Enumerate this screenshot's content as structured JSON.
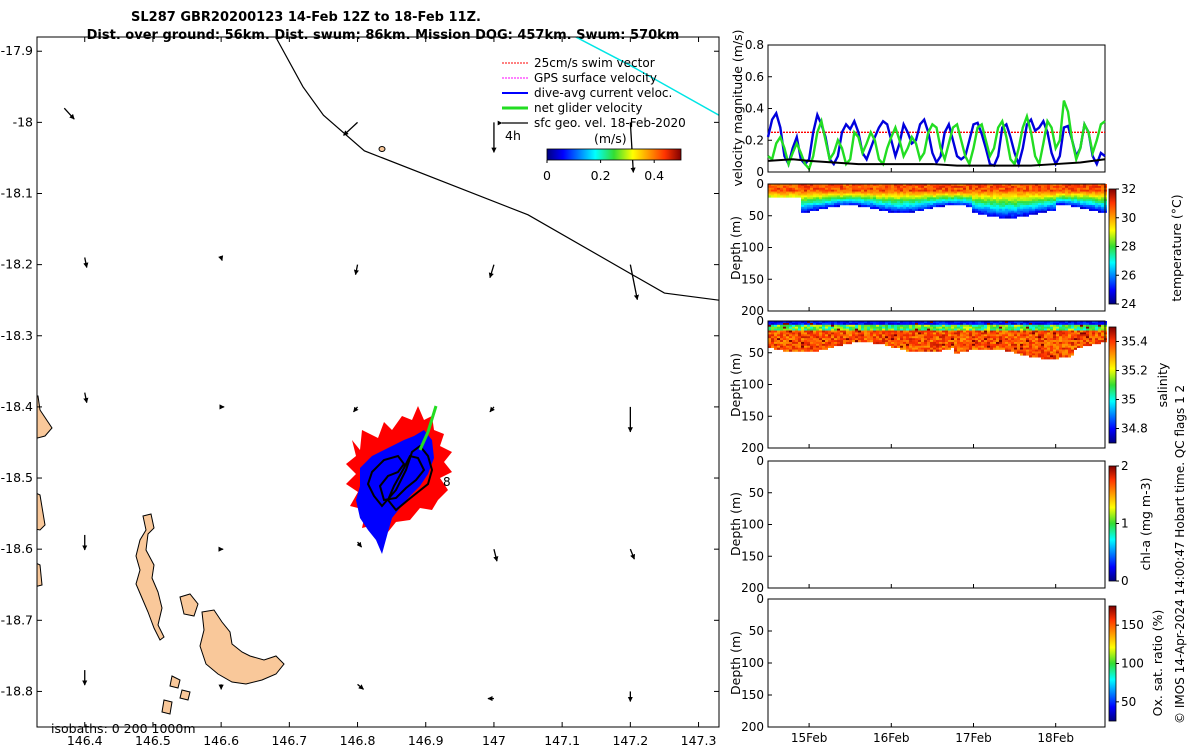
{
  "chart_data": [
    {
      "type": "scatter",
      "id": "map",
      "title_line1": "SL287 GBR20200123 14-Feb 12Z to 18-Feb 11Z.",
      "title_line2": "Dist. over ground: 56km. Dist. swum: 86km. Mission DOG: 457km. Swum: 570km",
      "xlim": [
        146.33,
        147.33
      ],
      "ylim": [
        -18.85,
        -17.88
      ],
      "x_ticks": [
        "146.4",
        "146.5",
        "146.6",
        "146.7",
        "146.8",
        "146.9",
        "147",
        "147.1",
        "147.2",
        "147.3"
      ],
      "x_tick_values": [
        146.4,
        146.5,
        146.6,
        146.7,
        146.8,
        146.9,
        147.0,
        147.1,
        147.2,
        147.3
      ],
      "y_ticks": [
        "-17.9",
        "-18",
        "-18.1",
        "-18.2",
        "-18.3",
        "-18.4",
        "-18.5",
        "-18.6",
        "-18.7",
        "-18.8"
      ],
      "y_tick_values": [
        -17.9,
        -18.0,
        -18.1,
        -18.2,
        -18.3,
        -18.4,
        -18.5,
        -18.6,
        -18.7,
        -18.8
      ],
      "legend": [
        {
          "label": "25cm/s swim vector",
          "color": "#ff0000"
        },
        {
          "label": "GPS surface velocity",
          "color": "#ff00ff"
        },
        {
          "label": "dive-avg current veloc.",
          "color": "#0000ff"
        },
        {
          "label": "net glider velocity",
          "color": "#00dd00"
        },
        {
          "label": "sfc geo. vel. 18-Feb-2020",
          "color": "#000000"
        }
      ],
      "annotation_4h": "4h",
      "annotation_8": "8",
      "isobath_label": "isobaths: 0   200  1000m",
      "colorbar_title": "(m/s)",
      "colorbar_ticks": [
        "0",
        "0.2",
        "0.4"
      ],
      "colorbar_tick_values": [
        0,
        0.2,
        0.4
      ],
      "colorbar_range": [
        0,
        0.5
      ],
      "geo_vectors": [
        {
          "lon": 146.37,
          "lat": -17.98,
          "u": 0.1,
          "v": -0.11
        },
        {
          "lon": 146.8,
          "lat": -18.0,
          "u": -0.14,
          "v": -0.13
        },
        {
          "lon": 147.0,
          "lat": -18.0,
          "u": 0.0,
          "v": -0.3
        },
        {
          "lon": 147.2,
          "lat": -18.0,
          "u": 0.03,
          "v": -0.5
        },
        {
          "lon": 146.4,
          "lat": -18.19,
          "u": 0.02,
          "v": -0.1
        },
        {
          "lon": 146.6,
          "lat": -18.19,
          "u": 0.01,
          "v": -0.03
        },
        {
          "lon": 146.8,
          "lat": -18.2,
          "u": -0.02,
          "v": -0.1
        },
        {
          "lon": 147.0,
          "lat": -18.2,
          "u": -0.04,
          "v": -0.13
        },
        {
          "lon": 147.2,
          "lat": -18.2,
          "u": 0.07,
          "v": -0.35
        },
        {
          "lon": 146.4,
          "lat": -18.38,
          "u": 0.02,
          "v": -0.1
        },
        {
          "lon": 146.6,
          "lat": -18.4,
          "u": 0.03,
          "v": 0.0
        },
        {
          "lon": 146.8,
          "lat": -18.4,
          "u": -0.04,
          "v": -0.05
        },
        {
          "lon": 147.0,
          "lat": -18.4,
          "u": -0.04,
          "v": -0.05
        },
        {
          "lon": 147.2,
          "lat": -18.4,
          "u": 0.0,
          "v": -0.25
        },
        {
          "lon": 146.4,
          "lat": -18.58,
          "u": 0.0,
          "v": -0.15
        },
        {
          "lon": 146.6,
          "lat": -18.6,
          "u": 0.02,
          "v": 0.0
        },
        {
          "lon": 146.8,
          "lat": -18.59,
          "u": 0.04,
          "v": -0.05
        },
        {
          "lon": 147.0,
          "lat": -18.6,
          "u": 0.03,
          "v": -0.12
        },
        {
          "lon": 147.2,
          "lat": -18.6,
          "u": 0.04,
          "v": -0.1
        },
        {
          "lon": 146.4,
          "lat": -18.77,
          "u": 0.0,
          "v": -0.15
        },
        {
          "lon": 146.6,
          "lat": -18.79,
          "u": 0.0,
          "v": -0.05
        },
        {
          "lon": 146.8,
          "lat": -18.79,
          "u": 0.06,
          "v": -0.05
        },
        {
          "lon": 147.0,
          "lat": -18.81,
          "u": -0.06,
          "v": 0.0
        },
        {
          "lon": 147.2,
          "lat": -18.8,
          "u": 0.0,
          "v": -0.1
        }
      ],
      "isobath_line": [
        [
          146.68,
          -17.88
        ],
        [
          146.72,
          -17.95
        ],
        [
          146.75,
          -17.99
        ],
        [
          146.81,
          -18.04
        ],
        [
          147.05,
          -18.13
        ],
        [
          147.25,
          -18.24
        ],
        [
          147.33,
          -18.25
        ]
      ],
      "isobath_cyan": [
        [
          147.12,
          -17.88
        ],
        [
          147.2,
          -17.92
        ],
        [
          147.33,
          -17.99
        ]
      ]
    },
    {
      "type": "line",
      "id": "velocity",
      "ylabel": "velocity magnitude (m/s)",
      "ylim": [
        0,
        0.8
      ],
      "y_ticks": [
        "0",
        "0.2",
        "0.4",
        "0.6",
        "0.8"
      ],
      "y_tick_values": [
        0,
        0.2,
        0.4,
        0.6,
        0.8
      ],
      "xlim": [
        14.5,
        18.6
      ],
      "red_value": 0.25,
      "series": [
        {
          "name": "dive-avg current",
          "color": "#0000dd",
          "x": [
            14.5,
            14.55,
            14.6,
            14.65,
            14.7,
            14.75,
            14.8,
            14.85,
            14.9,
            14.95,
            15.0,
            15.05,
            15.1,
            15.15,
            15.2,
            15.25,
            15.3,
            15.35,
            15.4,
            15.45,
            15.5,
            15.55,
            15.6,
            15.65,
            15.7,
            15.75,
            15.8,
            15.85,
            15.9,
            15.95,
            16.0,
            16.05,
            16.1,
            16.15,
            16.2,
            16.25,
            16.3,
            16.35,
            16.4,
            16.45,
            16.5,
            16.55,
            16.6,
            16.65,
            16.7,
            16.75,
            16.8,
            16.85,
            16.9,
            16.95,
            17.0,
            17.05,
            17.1,
            17.15,
            17.2,
            17.25,
            17.3,
            17.35,
            17.4,
            17.45,
            17.5,
            17.55,
            17.6,
            17.65,
            17.7,
            17.75,
            17.8,
            17.85,
            17.9,
            17.95,
            18.0,
            18.05,
            18.1,
            18.15,
            18.2,
            18.25,
            18.3,
            18.35,
            18.4,
            18.45,
            18.5,
            18.55,
            18.6
          ],
          "values": [
            0.22,
            0.33,
            0.37,
            0.28,
            0.1,
            0.05,
            0.15,
            0.22,
            0.08,
            0.05,
            0.08,
            0.25,
            0.36,
            0.3,
            0.22,
            0.08,
            0.05,
            0.1,
            0.25,
            0.3,
            0.27,
            0.32,
            0.25,
            0.12,
            0.08,
            0.15,
            0.22,
            0.28,
            0.32,
            0.3,
            0.2,
            0.1,
            0.18,
            0.3,
            0.25,
            0.18,
            0.2,
            0.3,
            0.33,
            0.25,
            0.12,
            0.06,
            0.1,
            0.25,
            0.3,
            0.2,
            0.1,
            0.08,
            0.1,
            0.2,
            0.3,
            0.31,
            0.24,
            0.15,
            0.05,
            0.04,
            0.1,
            0.28,
            0.3,
            0.22,
            0.12,
            0.05,
            0.15,
            0.3,
            0.33,
            0.26,
            0.28,
            0.32,
            0.25,
            0.12,
            0.05,
            0.1,
            0.28,
            0.29,
            0.2,
            0.1,
            0.15,
            0.3,
            0.25,
            0.1,
            0.05,
            0.12,
            0.1
          ]
        },
        {
          "name": "net glider",
          "color": "#22dd22",
          "x": [
            14.5,
            14.55,
            14.6,
            14.65,
            14.7,
            14.75,
            14.8,
            14.85,
            14.9,
            14.95,
            15.0,
            15.05,
            15.1,
            15.15,
            15.2,
            15.25,
            15.3,
            15.35,
            15.4,
            15.45,
            15.5,
            15.55,
            15.6,
            15.65,
            15.7,
            15.75,
            15.8,
            15.85,
            15.9,
            15.95,
            16.0,
            16.05,
            16.1,
            16.15,
            16.2,
            16.25,
            16.3,
            16.35,
            16.4,
            16.45,
            16.5,
            16.55,
            16.6,
            16.65,
            16.7,
            16.75,
            16.8,
            16.85,
            16.9,
            16.95,
            17.0,
            17.05,
            17.1,
            17.15,
            17.2,
            17.25,
            17.3,
            17.35,
            17.4,
            17.45,
            17.5,
            17.55,
            17.6,
            17.65,
            17.7,
            17.75,
            17.8,
            17.85,
            17.9,
            17.95,
            18.0,
            18.05,
            18.1,
            18.15,
            18.2,
            18.25,
            18.3,
            18.35,
            18.4,
            18.45,
            18.5,
            18.55,
            18.6
          ],
          "values": [
            0.1,
            0.08,
            0.18,
            0.22,
            0.15,
            0.05,
            0.12,
            0.18,
            0.12,
            0.05,
            0.02,
            0.1,
            0.25,
            0.32,
            0.2,
            0.08,
            0.12,
            0.2,
            0.15,
            0.05,
            0.08,
            0.25,
            0.22,
            0.12,
            0.18,
            0.25,
            0.2,
            0.08,
            0.05,
            0.15,
            0.22,
            0.28,
            0.2,
            0.1,
            0.15,
            0.22,
            0.18,
            0.08,
            0.12,
            0.25,
            0.3,
            0.28,
            0.15,
            0.08,
            0.18,
            0.28,
            0.3,
            0.2,
            0.1,
            0.05,
            0.15,
            0.28,
            0.3,
            0.2,
            0.1,
            0.15,
            0.28,
            0.32,
            0.22,
            0.08,
            0.05,
            0.15,
            0.28,
            0.35,
            0.25,
            0.1,
            0.05,
            0.18,
            0.32,
            0.28,
            0.15,
            0.2,
            0.45,
            0.38,
            0.2,
            0.08,
            0.15,
            0.3,
            0.25,
            0.12,
            0.2,
            0.3,
            0.32
          ]
        },
        {
          "name": "surface",
          "color": "#000000",
          "x": [
            14.5,
            14.8,
            15.0,
            15.3,
            15.6,
            15.9,
            16.2,
            16.5,
            16.8,
            17.1,
            17.4,
            17.7,
            18.0,
            18.3,
            18.6
          ],
          "values": [
            0.07,
            0.08,
            0.07,
            0.06,
            0.05,
            0.05,
            0.05,
            0.05,
            0.04,
            0.04,
            0.04,
            0.04,
            0.05,
            0.06,
            0.08
          ]
        }
      ]
    },
    {
      "type": "heatmap",
      "id": "temperature",
      "ylabel": "Depth (m)",
      "cbar_label": "temperature (°C)",
      "ylim": [
        200,
        0
      ],
      "y_ticks": [
        "0",
        "50",
        "100",
        "150",
        "200"
      ],
      "y_tick_values": [
        0,
        50,
        100,
        150,
        200
      ],
      "cbar_ticks": [
        "24",
        "26",
        "28",
        "30",
        "32"
      ],
      "cbar_tick_values": [
        24,
        26,
        28,
        30,
        32
      ],
      "cbar_range": [
        24,
        32
      ]
    },
    {
      "type": "heatmap",
      "id": "salinity",
      "ylabel": "Depth (m)",
      "cbar_label": "salinity",
      "ylim": [
        200,
        0
      ],
      "y_ticks": [
        "0",
        "50",
        "100",
        "150",
        "200"
      ],
      "y_tick_values": [
        0,
        50,
        100,
        150,
        200
      ],
      "cbar_ticks": [
        "34.8",
        "35",
        "35.2",
        "35.4"
      ],
      "cbar_tick_values": [
        34.8,
        35.0,
        35.2,
        35.4
      ],
      "cbar_range": [
        34.7,
        35.5
      ]
    },
    {
      "type": "heatmap",
      "id": "chla",
      "ylabel": "Depth (m)",
      "cbar_label": "chl-a (mg m-3)",
      "ylim": [
        200,
        0
      ],
      "y_ticks": [
        "0",
        "50",
        "100",
        "150",
        "200"
      ],
      "y_tick_values": [
        0,
        50,
        100,
        150,
        200
      ],
      "cbar_ticks": [
        "0",
        "1",
        "2"
      ],
      "cbar_tick_values": [
        0,
        1,
        2
      ],
      "cbar_range": [
        0,
        2
      ]
    },
    {
      "type": "heatmap",
      "id": "oxygen",
      "ylabel": "Depth (m)",
      "cbar_label": "Ox. sat. ratio (%)",
      "ylim": [
        200,
        0
      ],
      "y_ticks": [
        "0",
        "50",
        "100",
        "150",
        "200"
      ],
      "y_tick_values": [
        0,
        50,
        100,
        150,
        200
      ],
      "cbar_ticks": [
        "50",
        "100",
        "150"
      ],
      "cbar_tick_values": [
        50,
        100,
        150
      ],
      "cbar_range": [
        25,
        175
      ],
      "x_ticks": [
        "15Feb",
        "16Feb",
        "17Feb",
        "18Feb"
      ],
      "x_tick_values": [
        15,
        16,
        17,
        18
      ],
      "xlim": [
        14.5,
        18.6
      ]
    }
  ],
  "footer": {
    "credit": "© IMOS 14-Apr-2024 14:00:47 Hobart time. QC flags 1  2"
  },
  "colors": {
    "land": "#f9c89a",
    "glider_red": "#ff0000",
    "glider_blue": "#0000ff",
    "glider_green": "#22dd22",
    "cyan": "#00e5e5"
  }
}
